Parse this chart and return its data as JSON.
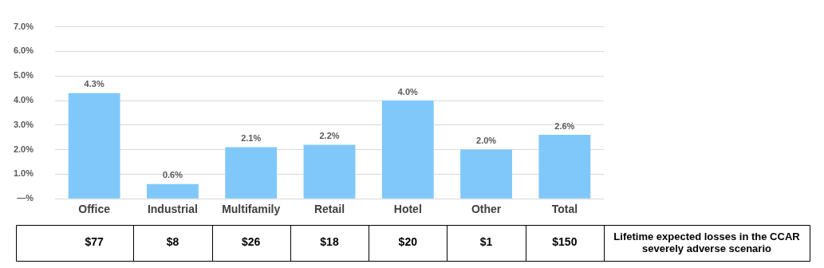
{
  "chart_data": {
    "type": "bar",
    "categories": [
      "Office",
      "Industrial",
      "Multifamily",
      "Retail",
      "Hotel",
      "Other",
      "Total"
    ],
    "values": [
      4.3,
      0.6,
      2.1,
      2.2,
      4.0,
      2.0,
      2.6
    ],
    "value_labels": [
      "4.3%",
      "0.6%",
      "2.1%",
      "2.2%",
      "4.0%",
      "2.0%",
      "2.6%"
    ],
    "color": "#80c8fa",
    "ylim": [
      0,
      7
    ],
    "yticks": [
      {
        "value": 0,
        "label": "—%"
      },
      {
        "value": 1,
        "label": "1.0%"
      },
      {
        "value": 2,
        "label": "2.0%"
      },
      {
        "value": 3,
        "label": "3.0%"
      },
      {
        "value": 4,
        "label": "4.0%"
      },
      {
        "value": 5,
        "label": "5.0%"
      },
      {
        "value": 6,
        "label": "6.0%"
      },
      {
        "value": 7,
        "label": "7.0%"
      }
    ],
    "grid": "y",
    "legend": false,
    "annotations": [
      "$77",
      "$8",
      "$26",
      "$18",
      "$20",
      "$1",
      "$150",
      "Lifetime expected losses in the CCAR severely adverse scenario"
    ]
  }
}
